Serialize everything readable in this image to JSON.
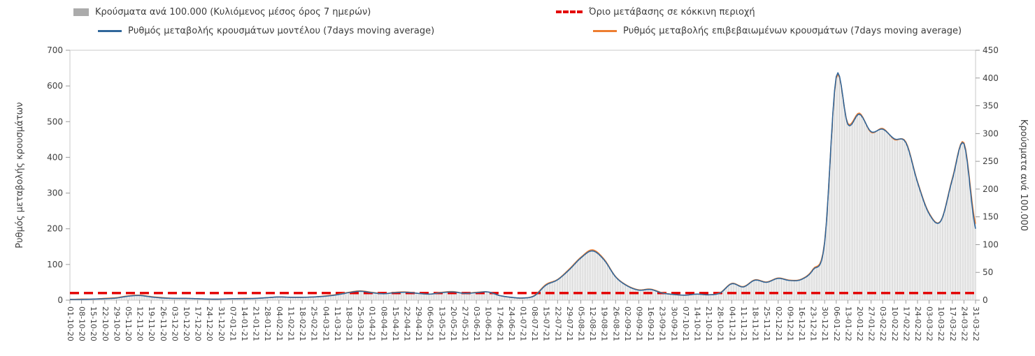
{
  "chart_data": {
    "type": "line",
    "title": "",
    "legend_position": "top",
    "grid": false,
    "legend": [
      {
        "label": "Κρούσματα ανά 100.000 (Κυλιόμενος μέσος όρος 7 ημερών)",
        "color": "#ababab",
        "marker": "bar"
      },
      {
        "label": "Όριο μετάβασης σε κόκκινη περιοχή",
        "color": "#e30000",
        "marker": "dashed-line"
      },
      {
        "label": "Ρυθμός μεταβολής κρουσμάτων μοντέλου (7days moving average)",
        "color": "#31679b",
        "marker": "line"
      },
      {
        "label": "Ρυθμός μεταβολής επιβεβαιωμένων κρουσμάτων (7days moving average)",
        "color": "#ed7d31",
        "marker": "line"
      }
    ],
    "ylabel_left": "Ρυθμός μεταβολής κρουσμάτων",
    "ylabel_right": "Κρούσματα ανά 100.000",
    "ylim_left": [
      0,
      700
    ],
    "ylim_right": [
      0,
      450
    ],
    "yticks_left": [
      0,
      100,
      200,
      300,
      400,
      500,
      600,
      700
    ],
    "yticks_right": [
      0,
      50,
      100,
      150,
      200,
      250,
      300,
      350,
      400,
      450
    ],
    "threshold_left": 20,
    "bar_color": "#c6c6c6",
    "bar_values_axis": "right",
    "x": [
      "01-10-20",
      "08-10-20",
      "15-10-20",
      "22-10-20",
      "29-10-20",
      "05-11-20",
      "12-11-20",
      "19-11-20",
      "26-11-20",
      "03-12-20",
      "10-12-20",
      "17-12-20",
      "24-12-20",
      "31-12-20",
      "07-01-21",
      "14-01-21",
      "21-01-21",
      "28-01-21",
      "04-02-21",
      "11-02-21",
      "18-02-21",
      "25-02-21",
      "04-03-21",
      "11-03-21",
      "18-03-21",
      "25-03-21",
      "01-04-21",
      "08-04-21",
      "15-04-21",
      "22-04-21",
      "29-04-21",
      "06-05-21",
      "13-05-21",
      "20-05-21",
      "27-05-21",
      "03-06-21",
      "10-06-21",
      "17-06-21",
      "24-06-21",
      "01-07-21",
      "08-07-21",
      "15-07-21",
      "22-07-21",
      "29-07-21",
      "05-08-21",
      "12-08-21",
      "19-08-21",
      "26-08-21",
      "02-09-21",
      "09-09-21",
      "16-09-21",
      "23-09-21",
      "30-09-21",
      "07-10-21",
      "14-10-21",
      "21-10-21",
      "28-10-21",
      "04-11-21",
      "11-11-21",
      "18-11-21",
      "25-11-21",
      "02-12-21",
      "09-12-21",
      "16-12-21",
      "23-12-21",
      "30-12-21",
      "06-01-22",
      "13-01-22",
      "20-01-22",
      "27-01-22",
      "03-02-22",
      "10-02-22",
      "17-02-22",
      "24-02-22",
      "03-03-22",
      "10-03-22",
      "17-03-22",
      "24-03-22",
      "31-03-22"
    ],
    "series": [
      {
        "name": "Ρυθμός μεταβολής κρουσμάτων μοντέλου (7days moving average)",
        "color": "#31679b",
        "axis": "left",
        "values": [
          2,
          2,
          3,
          4,
          6,
          11,
          13,
          9,
          6,
          5,
          5,
          4,
          3,
          3,
          4,
          4,
          5,
          7,
          9,
          8,
          8,
          9,
          11,
          15,
          21,
          25,
          21,
          18,
          21,
          22,
          19,
          17,
          21,
          23,
          19,
          21,
          23,
          13,
          8,
          6,
          12,
          42,
          57,
          85,
          118,
          138,
          113,
          65,
          40,
          28,
          30,
          20,
          16,
          14,
          17,
          15,
          20,
          46,
          37,
          56,
          50,
          61,
          55,
          58,
          85,
          160,
          626,
          492,
          521,
          472,
          479,
          452,
          441,
          330,
          242,
          221,
          338,
          438,
          200
        ]
      },
      {
        "name": "Ρυθμός μεταβολής επιβεβαιωμένων κρουσμάτων (7days moving average)",
        "color": "#ed7d31",
        "axis": "left",
        "values": [
          2,
          3,
          3,
          5,
          7,
          12,
          14,
          10,
          7,
          5,
          5,
          4,
          3,
          3,
          4,
          5,
          5,
          7,
          9,
          8,
          8,
          9,
          12,
          16,
          22,
          26,
          22,
          18,
          22,
          23,
          19,
          17,
          22,
          24,
          19,
          22,
          23,
          13,
          8,
          6,
          13,
          44,
          58,
          87,
          120,
          141,
          115,
          66,
          41,
          29,
          31,
          21,
          16,
          14,
          17,
          15,
          21,
          47,
          38,
          57,
          51,
          62,
          56,
          59,
          87,
          163,
          622,
          495,
          524,
          470,
          481,
          450,
          443,
          332,
          244,
          222,
          341,
          441,
          214
        ]
      }
    ],
    "bar_series_name": "Κρούσματα ανά 100.000 (Κυλιόμενος μέσος όρος 7 ημερών)",
    "bar_values": [
      1,
      2,
      2,
      3,
      5,
      8,
      9,
      6,
      5,
      3,
      3,
      3,
      2,
      2,
      3,
      3,
      3,
      5,
      6,
      5,
      5,
      6,
      8,
      10,
      14,
      17,
      14,
      12,
      14,
      15,
      12,
      11,
      14,
      15,
      12,
      14,
      15,
      8,
      5,
      4,
      8,
      28,
      37,
      56,
      77,
      91,
      74,
      42,
      26,
      19,
      20,
      14,
      10,
      9,
      11,
      10,
      14,
      30,
      24,
      37,
      33,
      40,
      36,
      38,
      56,
      105,
      400,
      318,
      337,
      302,
      309,
      289,
      285,
      213,
      157,
      143,
      219,
      284,
      138
    ]
  }
}
